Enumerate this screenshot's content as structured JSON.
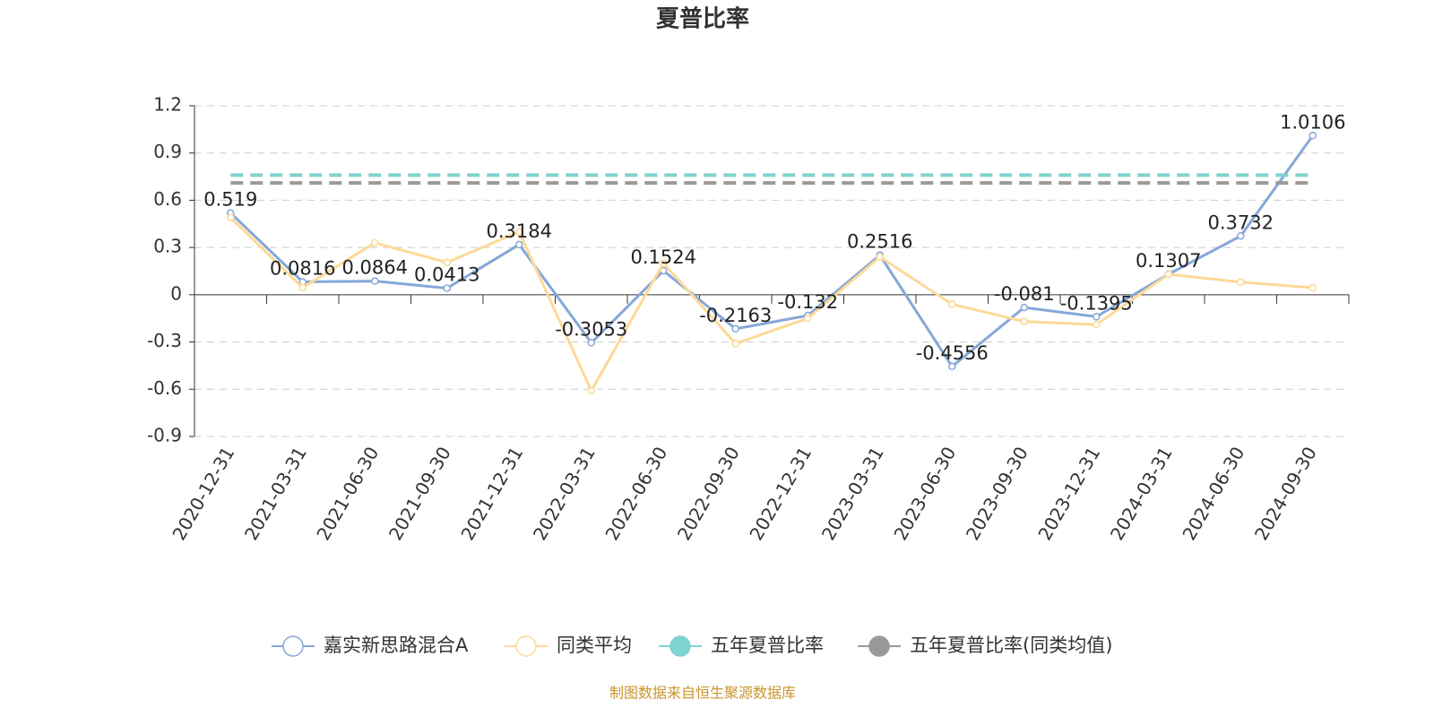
{
  "chart_data": {
    "type": "line",
    "title": "夏普比率",
    "categories": [
      "2020-12-31",
      "2021-03-31",
      "2021-06-30",
      "2021-09-30",
      "2021-12-31",
      "2022-03-31",
      "2022-06-30",
      "2022-09-30",
      "2022-12-31",
      "2023-03-31",
      "2023-06-30",
      "2023-09-30",
      "2023-12-31",
      "2024-03-31",
      "2024-06-30",
      "2024-09-30"
    ],
    "series": [
      {
        "name": "嘉实新思路混合A",
        "color": "#86a7d8",
        "values": [
          0.519,
          0.0816,
          0.0864,
          0.0413,
          0.3184,
          -0.3053,
          0.1524,
          -0.2163,
          -0.132,
          0.2516,
          -0.4556,
          -0.081,
          -0.1395,
          0.1307,
          0.3732,
          1.0106
        ]
      },
      {
        "name": "同类平均",
        "color": "#fcd998",
        "values": [
          0.49,
          0.045,
          0.33,
          0.205,
          0.4,
          -0.61,
          0.2,
          -0.31,
          -0.15,
          0.24,
          -0.06,
          -0.17,
          -0.19,
          0.13,
          0.08,
          0.045
        ]
      },
      {
        "name": "五年夏普比率",
        "color": "#7fd3d0",
        "type": "hline",
        "value": 0.76
      },
      {
        "name": "五年夏普比率(同类均值)",
        "color": "#9a9a9a",
        "type": "hline",
        "value": 0.71
      }
    ],
    "ylim": [
      -0.9,
      1.2
    ],
    "yticks": [
      -0.9,
      -0.6,
      -0.3,
      0,
      0.3,
      0.6,
      0.9,
      1.2
    ],
    "grid": true,
    "legend": "bottom",
    "source": "制图数据来自恒生聚源数据库"
  }
}
